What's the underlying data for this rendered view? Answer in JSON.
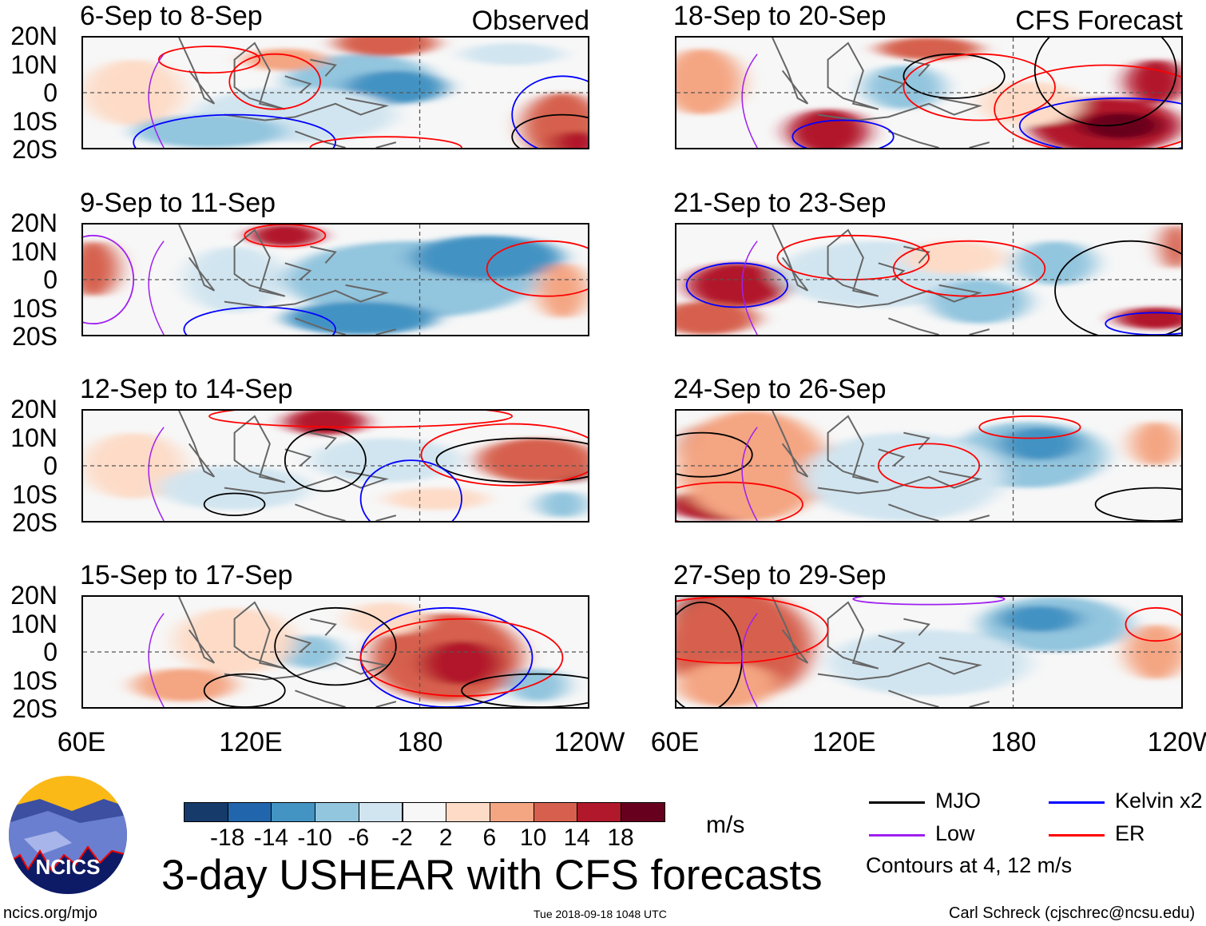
{
  "panels": [
    {
      "title": "6-Sep to 8-Sep",
      "label": "Observed"
    },
    {
      "title": "9-Sep to 11-Sep",
      "label": ""
    },
    {
      "title": "12-Sep to 14-Sep",
      "label": ""
    },
    {
      "title": "15-Sep to 17-Sep",
      "label": ""
    },
    {
      "title": "18-Sep to 20-Sep",
      "label": "CFS Forecast"
    },
    {
      "title": "21-Sep to 23-Sep",
      "label": ""
    },
    {
      "title": "24-Sep to 26-Sep",
      "label": ""
    },
    {
      "title": "27-Sep to 29-Sep",
      "label": ""
    }
  ],
  "lat_labels": [
    "20N",
    "10N",
    "0",
    "10S",
    "20S"
  ],
  "lon_labels": [
    "60E",
    "120E",
    "180",
    "120W"
  ],
  "colorbar": {
    "colors": [
      "#163a6a",
      "#2166ac",
      "#4393c3",
      "#92c5de",
      "#d1e5f0",
      "#f7f7f7",
      "#fddbc7",
      "#f4a582",
      "#d6604d",
      "#b2182b",
      "#67001f"
    ],
    "labels": [
      "-18",
      "-14",
      "-10",
      "-6",
      "-2",
      "2",
      "6",
      "10",
      "14",
      "18"
    ],
    "units": "m/s"
  },
  "legend": {
    "items": [
      {
        "label": "MJO",
        "color": "#000000"
      },
      {
        "label": "Kelvin x2",
        "color": "#0000ff"
      },
      {
        "label": "Low",
        "color": "#a020f0"
      },
      {
        "label": "ER",
        "color": "#ff0000"
      }
    ],
    "note": "Contours at 4, 12 m/s"
  },
  "title": "3-day USHEAR with CFS forecasts",
  "logo_text": "NCICS",
  "footer": {
    "url": "ncics.org/mjo",
    "timestamp": "Tue 2018-09-18 1048 UTC",
    "author": "Carl Schreck (cjschrec@ncsu.edu)"
  }
}
